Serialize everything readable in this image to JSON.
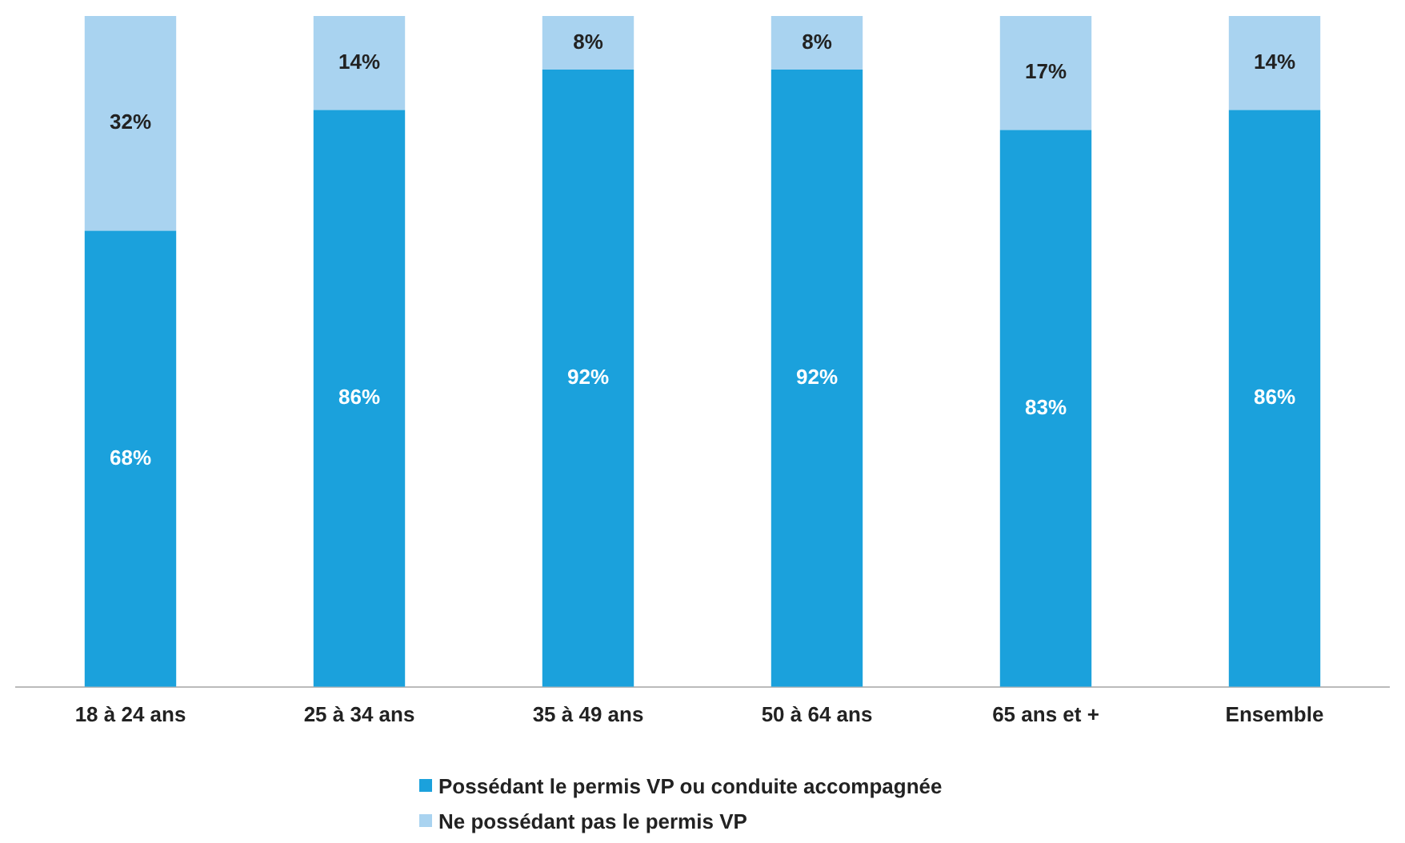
{
  "chart_data": {
    "type": "bar",
    "stacked": true,
    "categories": [
      "18 à 24 ans",
      "25 à 34 ans",
      "35 à 49 ans",
      "50 à 64 ans",
      "65 ans et +",
      "Ensemble"
    ],
    "series": [
      {
        "name": "Possédant le permis VP ou conduite accompagnée",
        "color": "#1ba1dc",
        "values": [
          68,
          86,
          92,
          92,
          83,
          86
        ],
        "value_labels": [
          "68%",
          "86%",
          "92%",
          "92%",
          "83%",
          "86%"
        ]
      },
      {
        "name": "Ne possédant pas le permis VP",
        "color": "#a9d3f0",
        "values": [
          32,
          14,
          8,
          8,
          17,
          14
        ],
        "value_labels": [
          "32%",
          "14%",
          "8%",
          "8%",
          "17%",
          "14%"
        ]
      }
    ],
    "ylim": [
      0,
      100
    ],
    "tick_labels": "x",
    "grid": false,
    "legend": "bottom"
  }
}
